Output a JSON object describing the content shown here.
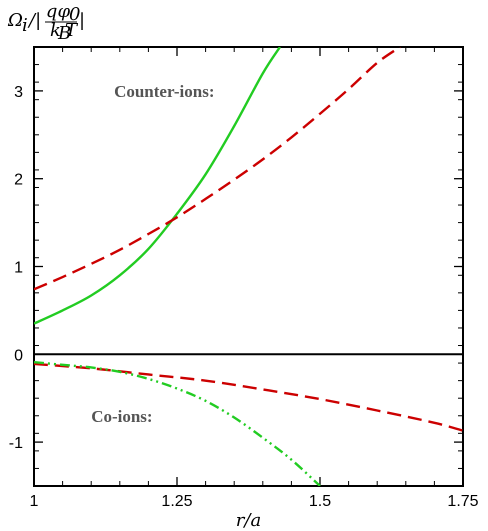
{
  "chart_data": {
    "type": "line",
    "title": "",
    "ylabel_parts": {
      "main": "Ω",
      "sub": "i",
      "slash": "/|",
      "num": "qφ",
      "num_sub": "0",
      "den": "k",
      "den_sub": "B",
      "den_tail": "T",
      "close": "|"
    },
    "xlabel": "r/a",
    "xlim": [
      1.0,
      1.75
    ],
    "ylim": [
      -1.5,
      3.5
    ],
    "xticks": [
      {
        "value": 1.0,
        "label": "1"
      },
      {
        "value": 1.25,
        "label": "1.25"
      },
      {
        "value": 1.5,
        "label": "1.5"
      },
      {
        "value": 1.75,
        "label": "1.75"
      }
    ],
    "yticks": [
      {
        "value": -1,
        "label": "-1"
      },
      {
        "value": 0,
        "label": "0"
      },
      {
        "value": 1,
        "label": "1"
      },
      {
        "value": 2,
        "label": "2"
      },
      {
        "value": 3,
        "label": "3"
      }
    ],
    "grid": false,
    "zero_line": true,
    "annotations": [
      {
        "text": "Counter-ions:",
        "x": 1.14,
        "y": 3.0
      },
      {
        "text": "Co-ions:",
        "x": 1.1,
        "y": -0.7
      }
    ],
    "series": [
      {
        "style": "solid",
        "color": "#22cc22",
        "x": [
          1.0,
          1.05,
          1.1,
          1.15,
          1.2,
          1.25,
          1.3,
          1.35,
          1.4,
          1.43
        ],
        "y": [
          0.35,
          0.5,
          0.67,
          0.9,
          1.2,
          1.6,
          2.05,
          2.6,
          3.2,
          3.5
        ]
      },
      {
        "style": "dashed",
        "color": "#cc0000",
        "x": [
          1.0,
          1.05,
          1.1,
          1.15,
          1.2,
          1.25,
          1.3,
          1.35,
          1.4,
          1.45,
          1.5,
          1.55,
          1.6,
          1.64
        ],
        "y": [
          0.74,
          0.88,
          1.03,
          1.19,
          1.37,
          1.56,
          1.77,
          1.99,
          2.22,
          2.47,
          2.74,
          3.02,
          3.32,
          3.5
        ]
      },
      {
        "style": "dashed",
        "color": "#cc0000",
        "x": [
          1.0,
          1.1,
          1.2,
          1.3,
          1.4,
          1.5,
          1.6,
          1.7,
          1.75
        ],
        "y": [
          -0.11,
          -0.16,
          -0.23,
          -0.3,
          -0.4,
          -0.51,
          -0.64,
          -0.78,
          -0.87
        ]
      },
      {
        "style": "dashdotdot",
        "color": "#22cc22",
        "x": [
          1.0,
          1.05,
          1.1,
          1.15,
          1.2,
          1.25,
          1.3,
          1.35,
          1.4,
          1.45,
          1.5
        ],
        "y": [
          -0.09,
          -0.12,
          -0.15,
          -0.2,
          -0.28,
          -0.39,
          -0.53,
          -0.72,
          -0.95,
          -1.2,
          -1.5
        ]
      }
    ]
  }
}
